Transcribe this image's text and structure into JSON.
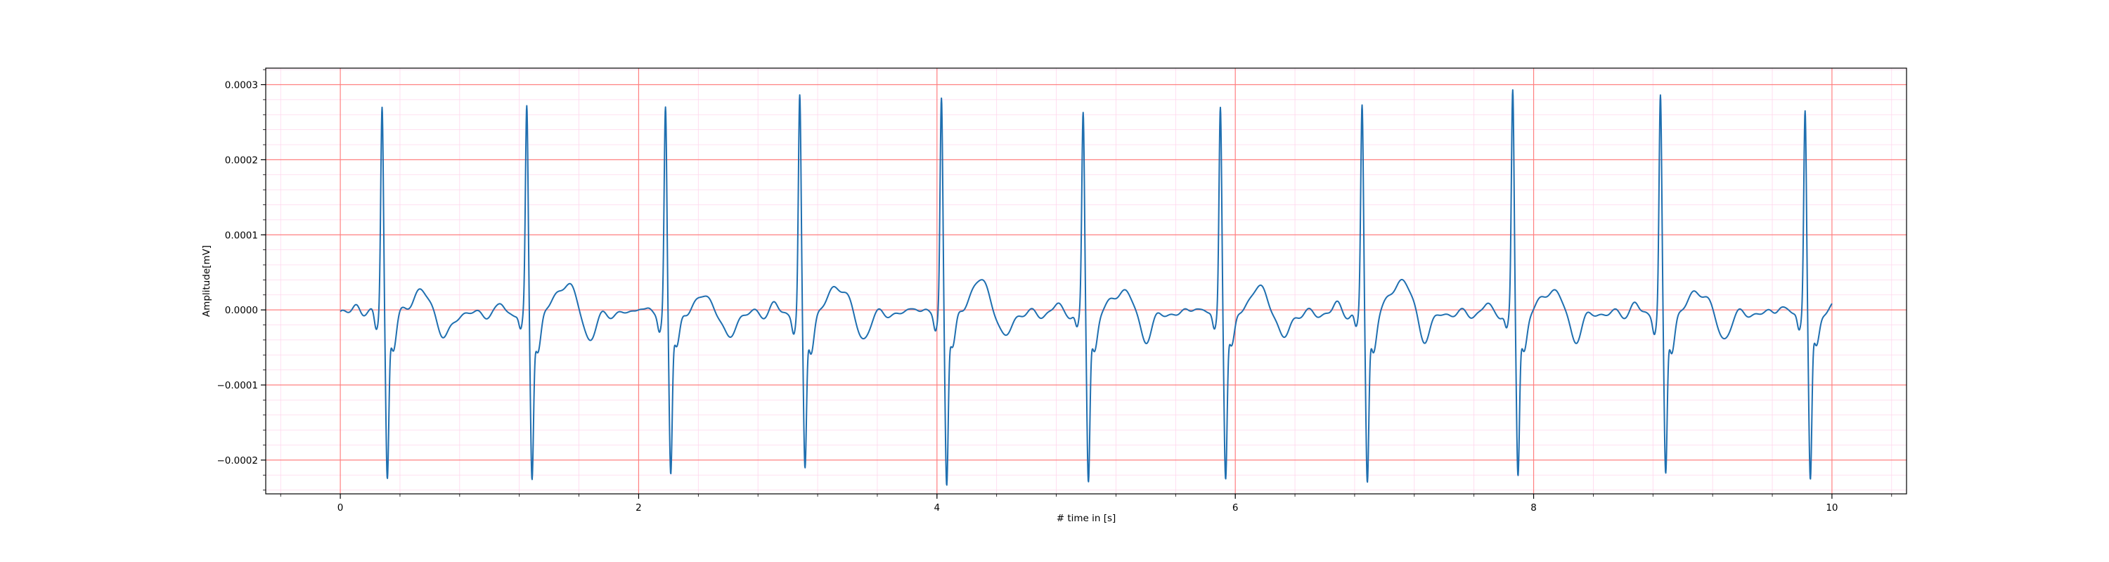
{
  "chart_data": {
    "type": "line",
    "title": "",
    "xlabel": "# time in [s]",
    "ylabel": "Amplitude[mV]",
    "xlim": [
      -0.5,
      10.5
    ],
    "ylim": [
      -0.000245,
      0.000322
    ],
    "x_ticks": [
      0,
      2,
      4,
      6,
      8,
      10
    ],
    "x_tick_labels": [
      "0",
      "2",
      "4",
      "6",
      "8",
      "10"
    ],
    "y_ticks": [
      -0.0002,
      -0.0001,
      0.0,
      0.0001,
      0.0002,
      0.0003
    ],
    "y_tick_labels": [
      "−0.0002",
      "−0.0001",
      "0.0000",
      "0.0001",
      "0.0002",
      "0.0003"
    ],
    "grid": {
      "major": true,
      "minor": true,
      "major_color": "#ff8080",
      "minor_color": "#ffd6ec"
    },
    "sample_rate_hz": 100,
    "series": [
      {
        "name": "",
        "color": "#1f6fb0",
        "beats": [
          {
            "r_time": 0.28,
            "r_peak": 0.00028,
            "s_trough": -0.000213,
            "t_peak": 2.8e-05
          },
          {
            "r_time": 1.25,
            "r_peak": 0.000272,
            "s_trough": -0.00021,
            "t_peak": 4e-05
          },
          {
            "r_time": 2.18,
            "r_peak": 0.000277,
            "s_trough": -0.000205,
            "t_peak": 2.2e-05
          },
          {
            "r_time": 3.08,
            "r_peak": 0.000287,
            "s_trough": -0.000203,
            "t_peak": 3.7e-05
          },
          {
            "r_time": 4.03,
            "r_peak": 0.000289,
            "s_trough": -0.000218,
            "t_peak": 4.3e-05
          },
          {
            "r_time": 4.98,
            "r_peak": 0.000266,
            "s_trough": -0.000215,
            "t_peak": 3.1e-05
          },
          {
            "r_time": 5.9,
            "r_peak": 0.000279,
            "s_trough": -0.00021,
            "t_peak": 3.3e-05
          },
          {
            "r_time": 6.85,
            "r_peak": 0.000278,
            "s_trough": -0.000218,
            "t_peak": 4.5e-05
          },
          {
            "r_time": 7.86,
            "r_peak": 0.000295,
            "s_trough": -0.000207,
            "t_peak": 3.2e-05
          },
          {
            "r_time": 8.85,
            "r_peak": 0.000287,
            "s_trough": -0.00021,
            "t_peak": 3e-05
          },
          {
            "r_time": 9.82,
            "r_peak": 0.000275,
            "s_trough": -0.000213,
            "t_peak": 2.8e-05
          }
        ],
        "x_start": 0.0,
        "x_end": 10.0
      }
    ]
  }
}
